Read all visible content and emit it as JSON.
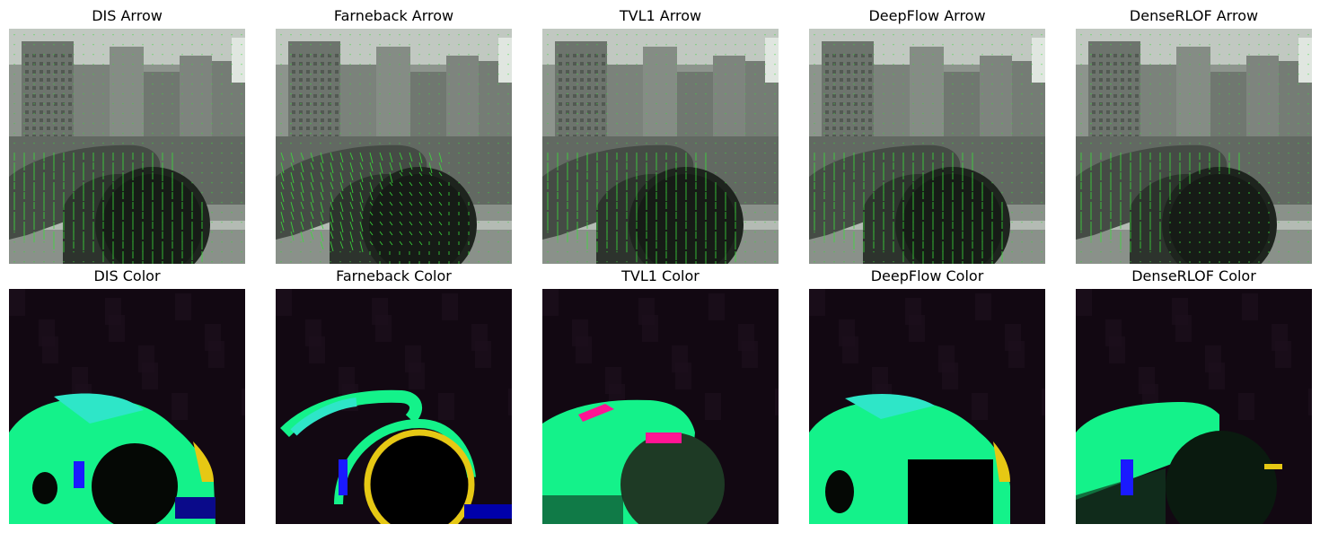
{
  "figure": {
    "rows": [
      {
        "kind": "arrow",
        "panels": [
          {
            "title": "DIS Arrow",
            "method": "dis"
          },
          {
            "title": "Farneback Arrow",
            "method": "farneback"
          },
          {
            "title": "TVL1 Arrow",
            "method": "tvl1"
          },
          {
            "title": "DeepFlow Arrow",
            "method": "deepflow"
          },
          {
            "title": "DenseRLOF Arrow",
            "method": "denserlof"
          }
        ]
      },
      {
        "kind": "color",
        "panels": [
          {
            "title": "DIS Color",
            "method": "dis"
          },
          {
            "title": "Farneback Color",
            "method": "farneback"
          },
          {
            "title": "TVL1 Color",
            "method": "tvl1"
          },
          {
            "title": "DeepFlow Color",
            "method": "deepflow"
          },
          {
            "title": "DenseRLOF Color",
            "method": "denserlof"
          }
        ]
      }
    ],
    "colors": {
      "arrow_color": "#3cdc3c",
      "flow_main": "#14f28a",
      "flow_cyan": "#2ee6c8",
      "flow_blue": "#1a1aff",
      "flow_yellow": "#e6c814",
      "flow_magenta": "#ff1493",
      "flow_background": "#120812"
    }
  }
}
